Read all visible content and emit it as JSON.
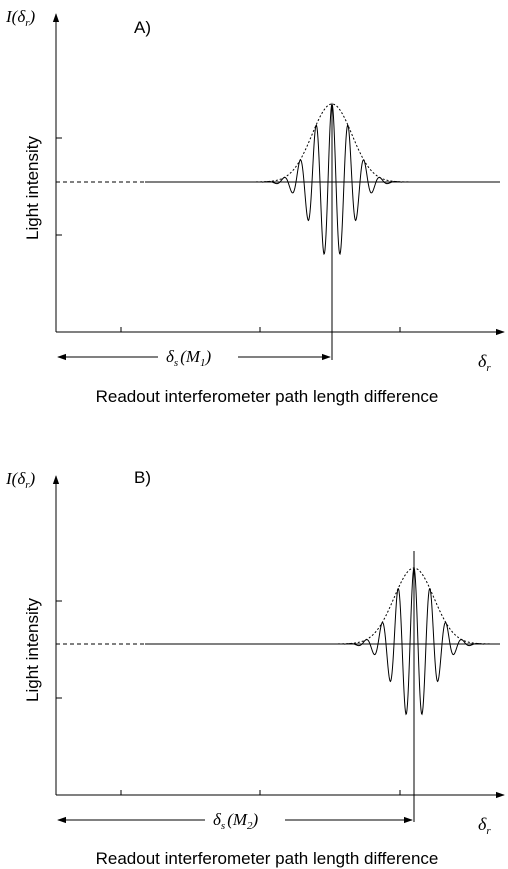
{
  "panels": [
    {
      "label": "A)",
      "y_axis_var": "I",
      "y_axis_sub": "r",
      "ylabel": "Light intensity",
      "x_axis_sub": "r",
      "offset_arg": "M",
      "offset_arg_sub": "1",
      "offset_sub": "s",
      "xlabel": "Readout interferometer path length difference"
    },
    {
      "label": "B)",
      "y_axis_var": "I",
      "y_axis_sub": "r",
      "ylabel": "Light intensity",
      "x_axis_sub": "r",
      "offset_arg": "M",
      "offset_arg_sub": "2",
      "offset_sub": "s",
      "xlabel": "Readout interferometer path length difference"
    }
  ],
  "symbols": {
    "delta": "δ",
    "open_paren": "(",
    "close_paren": ")"
  },
  "colors": {
    "ink": "#000000",
    "background": "#ffffff"
  }
}
